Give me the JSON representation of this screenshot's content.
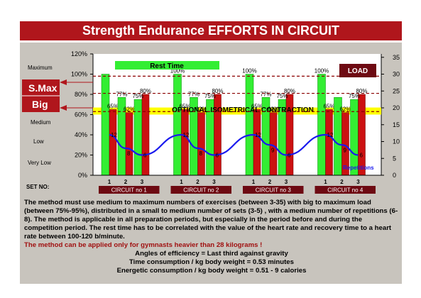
{
  "title": "Strength Endurance EFFORTS IN CIRCUIT",
  "colors": {
    "title_bg": "#b0161c",
    "panel": "#c8c4bd",
    "plot_bg": "#ffffff",
    "green": "#33ee33",
    "red": "#cc1111",
    "darkred": "#6e0a12",
    "yellow": "#ffff00",
    "blue": "#1a1aee",
    "white_label_bg": "#ffffff"
  },
  "left_labels": {
    "maximum": "Maximum",
    "smax": "S.Max",
    "big": "Big",
    "medium": "Medium",
    "low": "Low",
    "very_low": "Very Low",
    "set_no": "SET NO:"
  },
  "rest_time_label": "Rest Time",
  "load_label": "LOAD",
  "isometric_label": "OPTIONAL ISOMETRICAL CONTRACTION",
  "repetitions_label": "Repetitions",
  "chart_data": {
    "type": "bar",
    "y_left": {
      "min": 0,
      "max": 120,
      "ticks": [
        "0%",
        "20%",
        "40%",
        "60%",
        "80%",
        "100%",
        "120%"
      ]
    },
    "y_right": {
      "min": 0,
      "max": 36,
      "ticks": [
        "0",
        "5",
        "10",
        "15",
        "20",
        "25",
        "30",
        "35"
      ]
    },
    "circuits": [
      "CIRCUIT no 1",
      "CIRCUIT no 2",
      "CIRCUIT no 3",
      "CIRCUIT no 4"
    ],
    "sets": [
      "1",
      "2",
      "3"
    ],
    "series": [
      {
        "name": "green",
        "values": [
          [
            100,
            77,
            75
          ],
          [
            100,
            77,
            75
          ],
          [
            100,
            77,
            75
          ],
          [
            100,
            77,
            75
          ]
        ],
        "labels": [
          [
            "",
            "77%",
            "75%"
          ],
          [
            "100%",
            "77%",
            "75%"
          ],
          [
            "100%",
            "77%",
            "75%"
          ],
          [
            "100%",
            "",
            "75%"
          ]
        ]
      },
      {
        "name": "red",
        "values": [
          [
            65,
            62,
            80
          ],
          [
            65,
            62,
            80
          ],
          [
            65,
            62,
            80
          ],
          [
            65,
            62,
            80
          ]
        ],
        "labels": [
          [
            "65%",
            "62%",
            "80%"
          ],
          [
            "65%",
            "62%",
            "80%"
          ],
          [
            "65%",
            "62%",
            "80%"
          ],
          [
            "65%",
            "62%",
            "80%"
          ]
        ]
      }
    ],
    "repetitions": {
      "name": "Repetitions",
      "values": [
        [
          12,
          8,
          6
        ],
        [
          12,
          8,
          6
        ],
        [
          12,
          9,
          6
        ],
        [
          12,
          9,
          6
        ]
      ],
      "labels": [
        [
          "12",
          "8",
          "6"
        ],
        [
          "12",
          "8",
          "6"
        ],
        [
          "12",
          "9",
          "6"
        ],
        [
          "12",
          "9",
          "6"
        ]
      ]
    },
    "reference_lines": {
      "smax": 98,
      "big": 81,
      "medium": 63
    }
  },
  "description": {
    "p1": "The method must use medium to maximum numbers of exercises (between 3-35) with big to maximum load (between 75%-95%), distributed in a small to medium number of sets (3-5) , with a medium number of repetitions (6-8). The method is applicable in all preparation periods, but especially in the period before and during the competition period. The rest time has to be correlated with the value of the heart rate and recovery time to a heart rate between 100-120 b/minute.",
    "warn": "The method can be applied only for gymnasts heavier than 28 kilograms !",
    "l1": "Angles of efficiency = Last third against gravity",
    "l2": "Time consumption / kg body weight = 0.53 minutes",
    "l3": "Energetic consumption / kg body weight = 0.51 - 9 calories"
  }
}
